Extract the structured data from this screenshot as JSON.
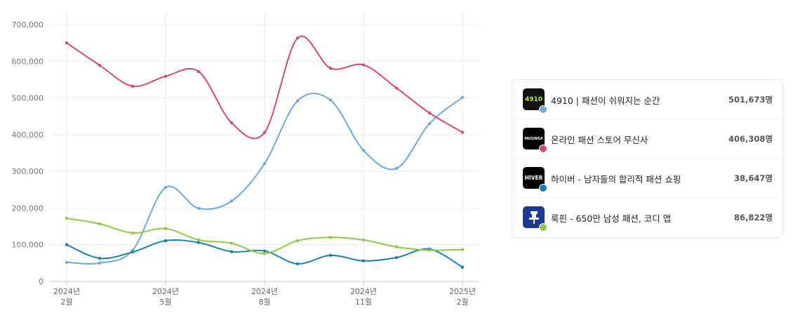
{
  "chart_data": {
    "type": "line",
    "categories": [
      "2024-02",
      "2024-03",
      "2024-04",
      "2024-05",
      "2024-06",
      "2024-07",
      "2024-08",
      "2024-09",
      "2024-10",
      "2024-11",
      "2024-12",
      "2025-01",
      "2025-02"
    ],
    "x_tick_labels": [
      {
        "index": 0,
        "line1": "2024년",
        "line2": "2월"
      },
      {
        "index": 3,
        "line1": "2024년",
        "line2": "5월"
      },
      {
        "index": 6,
        "line1": "2024년",
        "line2": "8월"
      },
      {
        "index": 9,
        "line1": "2024년",
        "line2": "11월"
      },
      {
        "index": 12,
        "line1": "2025년",
        "line2": "2월"
      }
    ],
    "y_ticks": [
      0,
      100000,
      200000,
      300000,
      400000,
      500000,
      600000,
      700000
    ],
    "y_tick_labels": [
      "0",
      "100,000",
      "200,000",
      "300,000",
      "400,000",
      "500,000",
      "600,000",
      "700,000"
    ],
    "ylim": [
      0,
      700000
    ],
    "grid": true,
    "series": [
      {
        "name": "4910 | 패션이 쉬워지는 순간",
        "color": "#6fa8dc",
        "values": [
          52000,
          50000,
          85000,
          256000,
          199000,
          219000,
          321000,
          492000,
          494000,
          357000,
          308000,
          430000,
          501673
        ]
      },
      {
        "name": "온라인 패션 스토어 무신사",
        "color": "#d04a78",
        "values": [
          650000,
          589000,
          532000,
          559000,
          572000,
          432000,
          406000,
          663000,
          581000,
          590000,
          527000,
          459000,
          406308
        ]
      },
      {
        "name": "하이버 - 남자들의 합리적 패션 쇼핑",
        "color": "#1a7fb0",
        "values": [
          100000,
          63000,
          80000,
          111000,
          106000,
          81000,
          83000,
          48000,
          71000,
          56000,
          65000,
          88000,
          38647
        ]
      },
      {
        "name": "룩핀 - 650만 남성 패션, 코디 앱",
        "color": "#8fc74a",
        "values": [
          172000,
          157000,
          132000,
          144000,
          113000,
          104000,
          76000,
          111000,
          120000,
          113000,
          94000,
          85000,
          86822
        ]
      }
    ]
  },
  "legend": {
    "items": [
      {
        "name": "4910 | 패션이 쉬워지는 순간",
        "value": "501,673명",
        "icon_text": "4910",
        "icon": "4910-app-icon",
        "icon_bg": "#111111",
        "icon_fg": "#b6e53c",
        "dot_color": "#6fa8dc"
      },
      {
        "name": "온라인 패션 스토어 무신사",
        "value": "406,308명",
        "icon_text": "MUSINSA",
        "icon": "musinsa-app-icon",
        "icon_bg": "#000000",
        "icon_fg": "#ffffff",
        "dot_color": "#d04a78"
      },
      {
        "name": "하이버 - 남자들의 합리적 패션 쇼핑",
        "value": "38,647명",
        "icon_text": "HIVER",
        "icon": "hiver-app-icon",
        "icon_bg": "#000000",
        "icon_fg": "#ffffff",
        "dot_color": "#1a7fb0"
      },
      {
        "name": "룩핀 - 650만 남성 패션, 코디 앱",
        "value": "86,822명",
        "icon_text": "",
        "icon": "lookpin-pin-icon",
        "icon_bg": "#1d3a8f",
        "icon_fg": "#ffffff",
        "dot_color": "#8fc74a"
      }
    ]
  }
}
